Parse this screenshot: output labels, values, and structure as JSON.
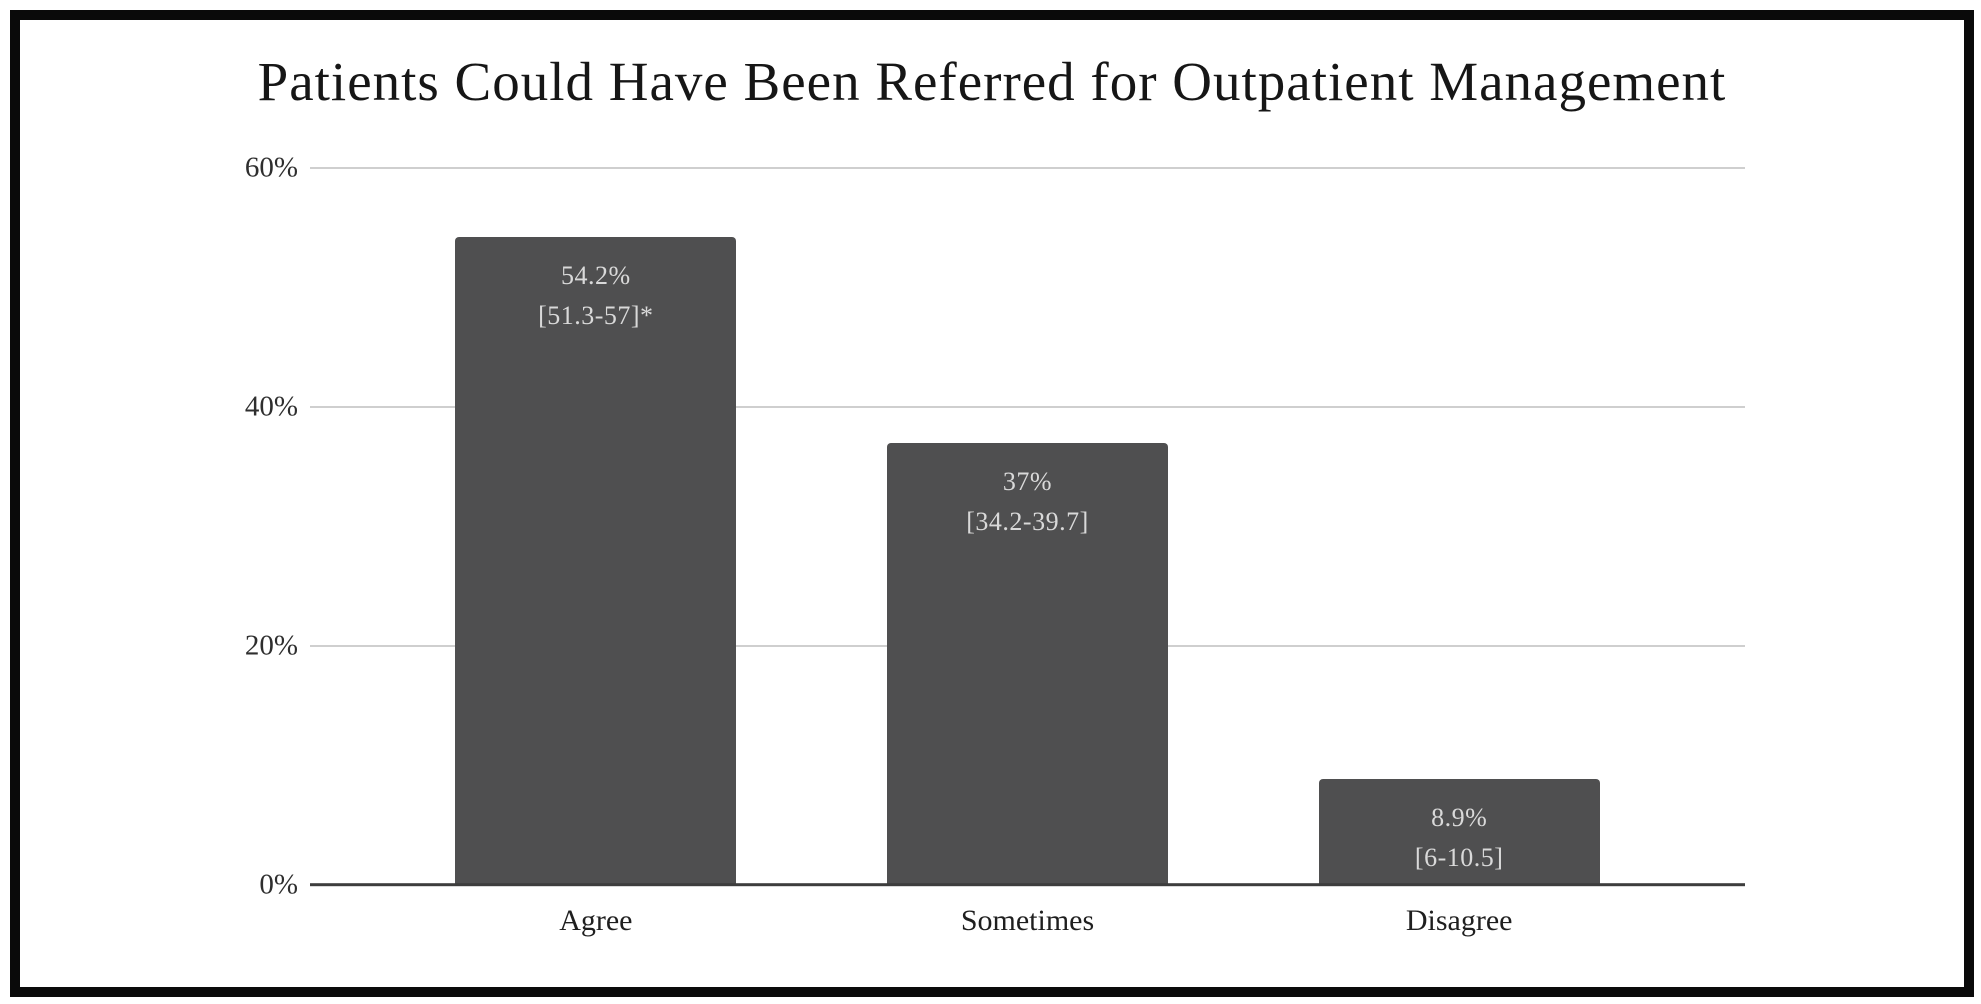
{
  "page": {
    "background": "#ffffff",
    "frame_border_color": "#0a0a0a"
  },
  "chart_data": {
    "type": "bar",
    "title": "Patients Could Have Been Referred for Outpatient Management",
    "categories": [
      "Agree",
      "Sometimes",
      "Disagree"
    ],
    "values": [
      54.2,
      37,
      8.9
    ],
    "bar_labels": [
      {
        "value": "54.2%",
        "interval": "[51.3-57]*"
      },
      {
        "value": "37%",
        "interval": "[34.2-39.7]"
      },
      {
        "value": "8.9%",
        "interval": "[6-10.5]"
      }
    ],
    "xlabel": "",
    "ylabel": "",
    "ylim": [
      0,
      60
    ],
    "yticks": [
      {
        "value": 0,
        "label": "0%"
      },
      {
        "value": 20,
        "label": "20%"
      },
      {
        "value": 40,
        "label": "40%"
      },
      {
        "value": 60,
        "label": "60%"
      }
    ],
    "grid": "horizontal",
    "legend": "none",
    "colors": {
      "bar": "#4f4f50",
      "bar_label_text": "#d9d9d9",
      "gridline": "#cfcfcf",
      "axis_line": "#3d3d3d",
      "title_text": "#161616",
      "tick_text": "#2e2e2e"
    }
  }
}
